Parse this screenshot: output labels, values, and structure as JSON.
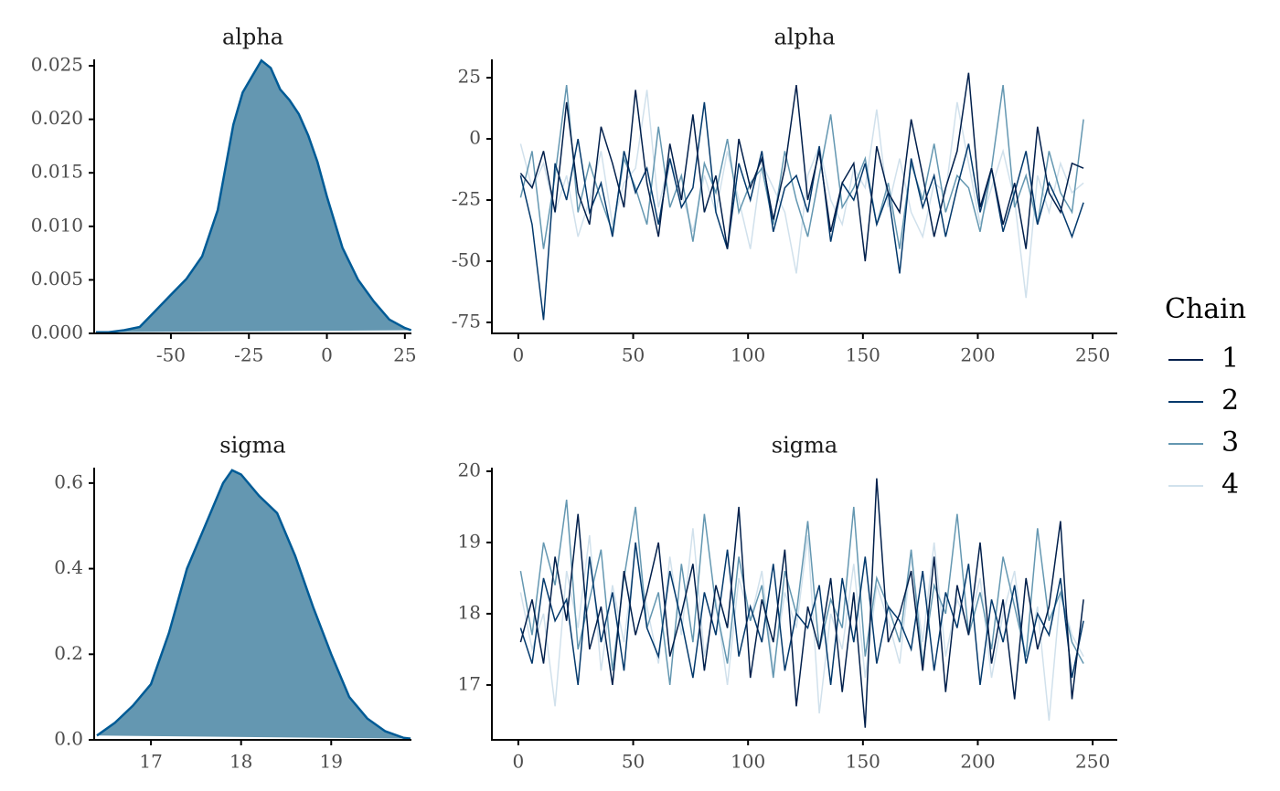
{
  "chart_data": [
    {
      "type": "density",
      "title": "alpha",
      "color": "#005b96",
      "fill": "#6497b1",
      "x": [
        -74,
        -70,
        -65,
        -60,
        -55,
        -50,
        -45,
        -40,
        -35,
        -30,
        -27,
        -24,
        -21,
        -18,
        -15,
        -12,
        -9,
        -6,
        -3,
        0,
        5,
        10,
        15,
        20,
        25,
        27
      ],
      "values": [
        0.0001,
        0.0001,
        0.0003,
        0.0006,
        0.0021,
        0.0036,
        0.0051,
        0.0072,
        0.0115,
        0.0195,
        0.0225,
        0.024,
        0.0255,
        0.0248,
        0.0228,
        0.0218,
        0.0205,
        0.0185,
        0.016,
        0.0128,
        0.008,
        0.005,
        0.003,
        0.0013,
        0.0005,
        0.0003
      ],
      "xlim": [
        -74.6,
        27.1
      ],
      "xticks": [
        -50,
        -25,
        0,
        25
      ],
      "ylim": [
        0,
        0.0256
      ],
      "yticks": [
        {
          "value": 0,
          "label": "0.000"
        },
        {
          "value": 0.005,
          "label": "0.005"
        },
        {
          "value": 0.01,
          "label": "0.010"
        },
        {
          "value": 0.015,
          "label": "0.015"
        },
        {
          "value": 0.02,
          "label": "0.020"
        },
        {
          "value": 0.025,
          "label": "0.025"
        }
      ]
    },
    {
      "type": "line",
      "title": "alpha",
      "legend_title": "Chain",
      "x": [
        1,
        6,
        11,
        16,
        21,
        26,
        31,
        36,
        41,
        46,
        51,
        56,
        61,
        66,
        71,
        76,
        81,
        86,
        91,
        96,
        101,
        106,
        111,
        116,
        121,
        126,
        131,
        136,
        141,
        146,
        151,
        156,
        161,
        166,
        171,
        176,
        181,
        186,
        191,
        196,
        201,
        206,
        211,
        216,
        221,
        226,
        231,
        236,
        241,
        246
      ],
      "series": [
        {
          "name": "1",
          "color": "#011f4b",
          "values": [
            -14,
            -20,
            -5,
            -30,
            15,
            -22,
            -35,
            5,
            -10,
            -28,
            20,
            -18,
            -40,
            -2,
            -25,
            10,
            -30,
            -15,
            -45,
            0,
            -20,
            -8,
            -33,
            -12,
            22,
            -25,
            -5,
            -38,
            -18,
            -10,
            -50,
            -3,
            -22,
            -30,
            8,
            -15,
            -40,
            -20,
            -5,
            27,
            -28,
            -12,
            -35,
            -18,
            -45,
            5,
            -22,
            -30,
            -10,
            -12
          ]
        },
        {
          "name": "2",
          "color": "#03396c",
          "values": [
            -15,
            -35,
            -74,
            -10,
            -25,
            0,
            -30,
            -18,
            -40,
            -5,
            -22,
            -12,
            -35,
            -8,
            -28,
            -20,
            15,
            -30,
            -45,
            -10,
            -25,
            -5,
            -38,
            -20,
            -15,
            -30,
            -3,
            -42,
            -18,
            -25,
            -10,
            -35,
            -22,
            -55,
            -8,
            -28,
            -15,
            -40,
            -20,
            -2,
            -30,
            -12,
            -38,
            -22,
            -5,
            -35,
            -18,
            -28,
            -40,
            -26
          ]
        },
        {
          "name": "3",
          "color": "#6497b1",
          "values": [
            -24,
            -5,
            -45,
            -15,
            22,
            -30,
            -10,
            -25,
            -38,
            -8,
            -20,
            -35,
            5,
            -28,
            -15,
            -42,
            -10,
            -22,
            0,
            -30,
            -18,
            -12,
            -35,
            -5,
            -25,
            -40,
            -15,
            10,
            -28,
            -20,
            -8,
            -35,
            -18,
            -45,
            -10,
            -25,
            -2,
            -30,
            -15,
            -20,
            -38,
            -12,
            22,
            -28,
            -15,
            -35,
            -5,
            -22,
            -30,
            8
          ]
        },
        {
          "name": "4",
          "color": "#d1e1ec",
          "values": [
            -2,
            -20,
            -10,
            -30,
            -15,
            -40,
            -25,
            -5,
            -35,
            -18,
            -12,
            20,
            -28,
            -8,
            -22,
            -38,
            -15,
            -30,
            -5,
            -25,
            -45,
            -10,
            -20,
            -30,
            -55,
            -15,
            -3,
            -25,
            -35,
            -12,
            -20,
            12,
            -28,
            -8,
            -30,
            -40,
            -18,
            -22,
            15,
            -10,
            -35,
            -20,
            -5,
            -25,
            -65,
            -15,
            -30,
            -10,
            -22,
            -18
          ]
        }
      ],
      "xlim": [
        -11.5,
        260.7
      ],
      "xticks": [
        0,
        50,
        100,
        150,
        200,
        250
      ],
      "ylim": [
        -79.5,
        32.5
      ],
      "yticks": [
        -75,
        -50,
        -25,
        0,
        25
      ]
    },
    {
      "type": "density",
      "title": "sigma",
      "color": "#005b96",
      "fill": "#6497b1",
      "x": [
        16.4,
        16.6,
        16.8,
        17.0,
        17.2,
        17.4,
        17.6,
        17.8,
        17.9,
        18.0,
        18.2,
        18.4,
        18.6,
        18.8,
        19.0,
        19.2,
        19.4,
        19.6,
        19.8,
        19.88
      ],
      "values": [
        0.01,
        0.04,
        0.08,
        0.13,
        0.25,
        0.4,
        0.5,
        0.6,
        0.63,
        0.62,
        0.57,
        0.53,
        0.43,
        0.31,
        0.2,
        0.1,
        0.05,
        0.02,
        0.005,
        0.003
      ],
      "xlim": [
        16.37,
        19.89
      ],
      "xticks": [
        17,
        18,
        19
      ],
      "ylim": [
        0,
        0.636
      ],
      "yticks": [
        {
          "value": 0,
          "label": "0.0"
        },
        0.2,
        0.4,
        0.6
      ]
    },
    {
      "type": "line",
      "title": "sigma",
      "x": [
        1,
        6,
        11,
        16,
        21,
        26,
        31,
        36,
        41,
        46,
        51,
        56,
        61,
        66,
        71,
        76,
        81,
        86,
        91,
        96,
        101,
        106,
        111,
        116,
        121,
        126,
        131,
        136,
        141,
        146,
        151,
        156,
        161,
        166,
        171,
        176,
        181,
        186,
        191,
        196,
        201,
        206,
        211,
        216,
        221,
        226,
        231,
        236,
        241,
        246
      ],
      "series": [
        {
          "name": "1",
          "color": "#011f4b",
          "values": [
            17.6,
            18.2,
            17.3,
            18.8,
            17.9,
            19.4,
            17.5,
            18.1,
            17.0,
            18.6,
            17.7,
            18.3,
            19.0,
            17.4,
            18.0,
            18.7,
            17.2,
            18.4,
            17.8,
            19.5,
            17.1,
            18.2,
            17.6,
            18.9,
            16.7,
            18.1,
            17.5,
            18.5,
            16.9,
            18.3,
            16.4,
            19.9,
            17.6,
            18.0,
            18.6,
            17.2,
            18.8,
            16.9,
            18.4,
            17.7,
            19.0,
            17.3,
            18.2,
            16.8,
            18.5,
            17.5,
            18.1,
            19.3,
            16.8,
            18.2
          ]
        },
        {
          "name": "2",
          "color": "#03396c",
          "values": [
            17.8,
            17.3,
            18.5,
            17.9,
            18.2,
            17.0,
            18.8,
            17.6,
            18.3,
            17.2,
            19.0,
            17.8,
            17.4,
            18.6,
            17.9,
            17.1,
            18.3,
            17.7,
            18.9,
            17.4,
            18.1,
            17.6,
            18.7,
            17.2,
            18.0,
            17.8,
            18.4,
            17.0,
            18.5,
            17.6,
            18.8,
            17.3,
            18.1,
            17.9,
            17.5,
            18.6,
            17.2,
            18.3,
            17.8,
            18.7,
            17.0,
            18.2,
            17.6,
            18.4,
            17.3,
            18.0,
            17.7,
            18.5,
            17.1,
            17.9
          ]
        },
        {
          "name": "3",
          "color": "#6497b1",
          "values": [
            18.6,
            17.7,
            19.0,
            18.4,
            19.6,
            17.5,
            18.2,
            18.9,
            17.2,
            18.5,
            19.5,
            17.8,
            18.3,
            17.0,
            18.7,
            17.6,
            19.4,
            18.1,
            17.3,
            18.8,
            17.9,
            18.4,
            17.1,
            18.6,
            18.0,
            19.3,
            17.5,
            18.2,
            17.8,
            19.5,
            17.4,
            18.5,
            18.1,
            17.6,
            18.9,
            17.3,
            18.4,
            18.0,
            19.4,
            17.7,
            18.3,
            17.5,
            18.8,
            18.1,
            17.4,
            19.2,
            17.9,
            18.3,
            17.6,
            17.3
          ]
        },
        {
          "name": "4",
          "color": "#d1e1ec",
          "values": [
            18.3,
            17.5,
            18.0,
            16.7,
            18.6,
            17.8,
            19.1,
            17.2,
            18.4,
            17.6,
            18.9,
            18.1,
            17.3,
            18.8,
            17.7,
            19.2,
            17.4,
            18.2,
            17.0,
            18.5,
            17.9,
            18.6,
            17.2,
            18.3,
            17.8,
            19.1,
            16.6,
            18.0,
            17.5,
            18.7,
            17.1,
            18.4,
            17.9,
            17.3,
            18.8,
            17.6,
            19.0,
            17.4,
            18.2,
            17.8,
            18.5,
            17.1,
            18.0,
            18.6,
            17.3,
            18.1,
            16.5,
            18.3,
            17.7,
            17.4
          ]
        }
      ],
      "xlim": [
        -11.5,
        260.7
      ],
      "xticks": [
        0,
        50,
        100,
        150,
        200,
        250
      ],
      "ylim": [
        16.23,
        20.05
      ],
      "yticks": [
        17,
        18,
        19,
        20
      ]
    }
  ]
}
